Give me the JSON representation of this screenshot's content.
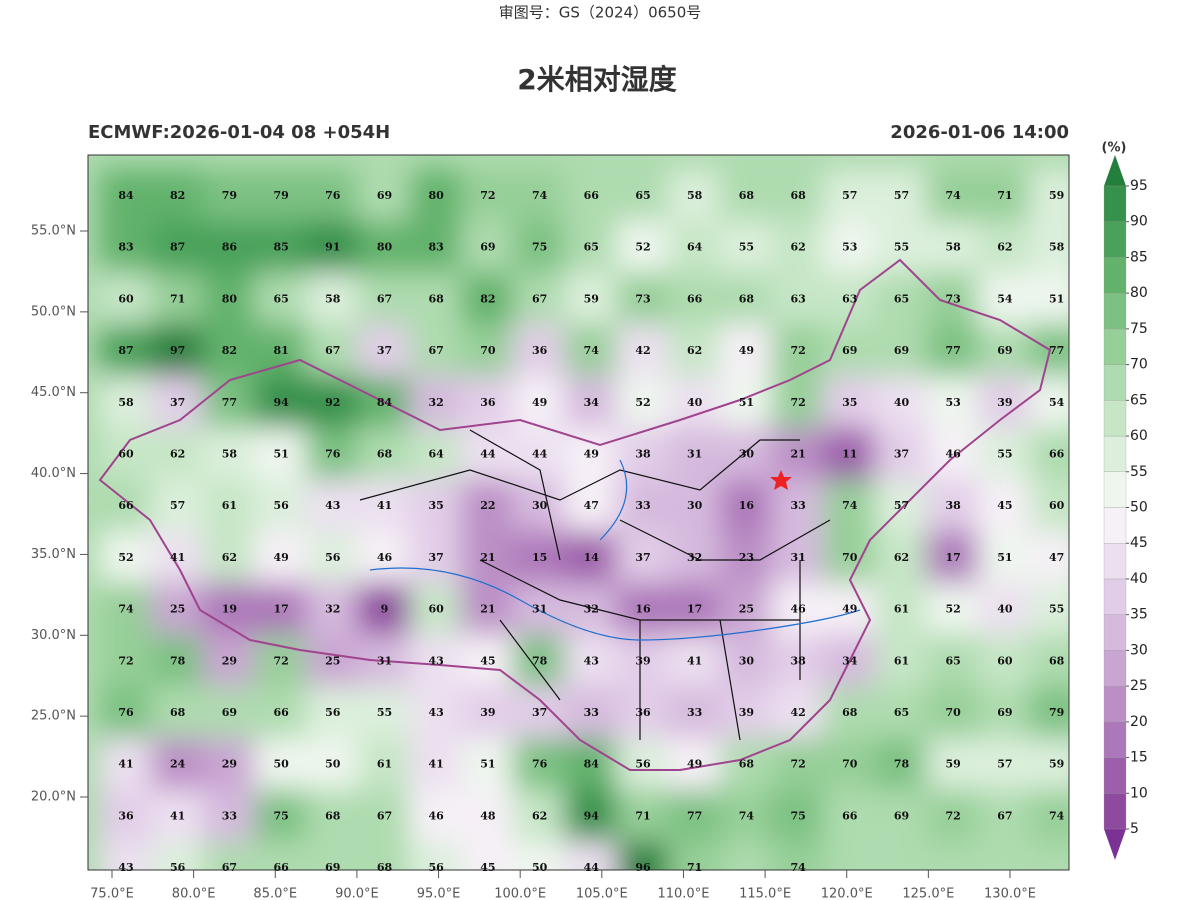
{
  "header": {
    "approval": "审图号：GS（2024）0650号",
    "title": "2米相对湿度",
    "model_run": "ECMWF:2026-01-04 08 +054H",
    "valid_time": "2026-01-06 14:00"
  },
  "map": {
    "lat_ticks": [
      {
        "value": 55,
        "label": "55.0°N"
      },
      {
        "value": 50,
        "label": "50.0°N"
      },
      {
        "value": 45,
        "label": "45.0°N"
      },
      {
        "value": 40,
        "label": "40.0°N"
      },
      {
        "value": 35,
        "label": "35.0°N"
      },
      {
        "value": 30,
        "label": "30.0°N"
      },
      {
        "value": 25,
        "label": "25.0°N"
      },
      {
        "value": 20,
        "label": "20.0°N"
      }
    ],
    "lon_ticks": [
      {
        "value": 75,
        "label": "75.0°E"
      },
      {
        "value": 80,
        "label": "80.0°E"
      },
      {
        "value": 85,
        "label": "85.0°E"
      },
      {
        "value": 90,
        "label": "90.0°E"
      },
      {
        "value": 95,
        "label": "95.0°E"
      },
      {
        "value": 100,
        "label": "100.0°E"
      },
      {
        "value": 105,
        "label": "105.0°E"
      },
      {
        "value": 110,
        "label": "110.0°E"
      },
      {
        "value": 115,
        "label": "115.0°E"
      },
      {
        "value": 120,
        "label": "120.0°E"
      },
      {
        "value": 125,
        "label": "125.0°E"
      },
      {
        "value": 130,
        "label": "130.0°E"
      }
    ],
    "grid_values": [
      [
        84,
        82,
        79,
        79,
        76,
        69,
        80,
        72,
        74,
        66,
        65,
        58,
        68,
        68,
        57,
        57,
        74,
        71,
        59
      ],
      [
        83,
        87,
        86,
        85,
        91,
        80,
        83,
        69,
        75,
        65,
        52,
        64,
        55,
        62,
        53,
        55,
        58,
        62,
        58
      ],
      [
        60,
        71,
        80,
        65,
        58,
        67,
        68,
        82,
        67,
        59,
        73,
        66,
        68,
        63,
        63,
        65,
        73,
        54,
        51
      ],
      [
        87,
        97,
        82,
        81,
        67,
        37,
        67,
        70,
        36,
        74,
        42,
        62,
        49,
        72,
        69,
        69,
        77,
        69,
        77
      ],
      [
        58,
        37,
        77,
        94,
        92,
        84,
        32,
        36,
        49,
        34,
        52,
        40,
        51,
        72,
        35,
        40,
        53,
        39,
        54
      ],
      [
        60,
        62,
        58,
        51,
        76,
        68,
        64,
        44,
        44,
        49,
        38,
        31,
        30,
        21,
        11,
        37,
        46,
        55,
        66
      ],
      [
        66,
        57,
        61,
        56,
        43,
        41,
        35,
        22,
        30,
        47,
        33,
        30,
        16,
        33,
        74,
        57,
        38,
        45,
        60
      ],
      [
        52,
        41,
        62,
        49,
        56,
        46,
        37,
        21,
        15,
        14,
        37,
        32,
        23,
        31,
        70,
        62,
        17,
        51,
        47
      ],
      [
        74,
        25,
        19,
        17,
        32,
        9,
        60,
        21,
        31,
        32,
        16,
        17,
        25,
        46,
        49,
        61,
        52,
        40,
        55
      ],
      [
        72,
        78,
        29,
        72,
        25,
        31,
        43,
        45,
        78,
        43,
        39,
        41,
        30,
        38,
        34,
        61,
        65,
        60,
        68
      ],
      [
        76,
        68,
        69,
        66,
        56,
        55,
        43,
        39,
        37,
        33,
        36,
        33,
        39,
        42,
        68,
        65,
        70,
        69,
        79
      ],
      [
        41,
        24,
        29,
        50,
        50,
        61,
        41,
        51,
        76,
        84,
        56,
        49,
        68,
        72,
        70,
        78,
        59,
        57,
        59
      ],
      [
        36,
        41,
        33,
        75,
        68,
        67,
        46,
        48,
        62,
        94,
        71,
        77,
        74,
        75,
        66,
        69,
        72,
        67,
        74
      ],
      [
        43,
        56,
        67,
        66,
        69,
        68,
        56,
        45,
        50,
        44,
        96,
        71,
        null,
        74,
        null,
        null,
        null,
        null,
        null
      ]
    ]
  },
  "colorbar": {
    "unit": "(%)",
    "levels": [
      5,
      10,
      15,
      20,
      25,
      30,
      35,
      40,
      45,
      50,
      55,
      60,
      65,
      70,
      75,
      80,
      85,
      90,
      95
    ],
    "colors": [
      "#7b3294",
      "#8e4a9f",
      "#9d5fab",
      "#ad78ba",
      "#bb8fc6",
      "#c9a5d2",
      "#d6bade",
      "#e2cde8",
      "#ece0f0",
      "#f6f0f7",
      "#eef6ee",
      "#dcefdc",
      "#c6e6c6",
      "#aedbaf",
      "#96cf98",
      "#7cc182",
      "#62b26c",
      "#4aa25a",
      "#36914b",
      "#257f3c"
    ]
  }
}
